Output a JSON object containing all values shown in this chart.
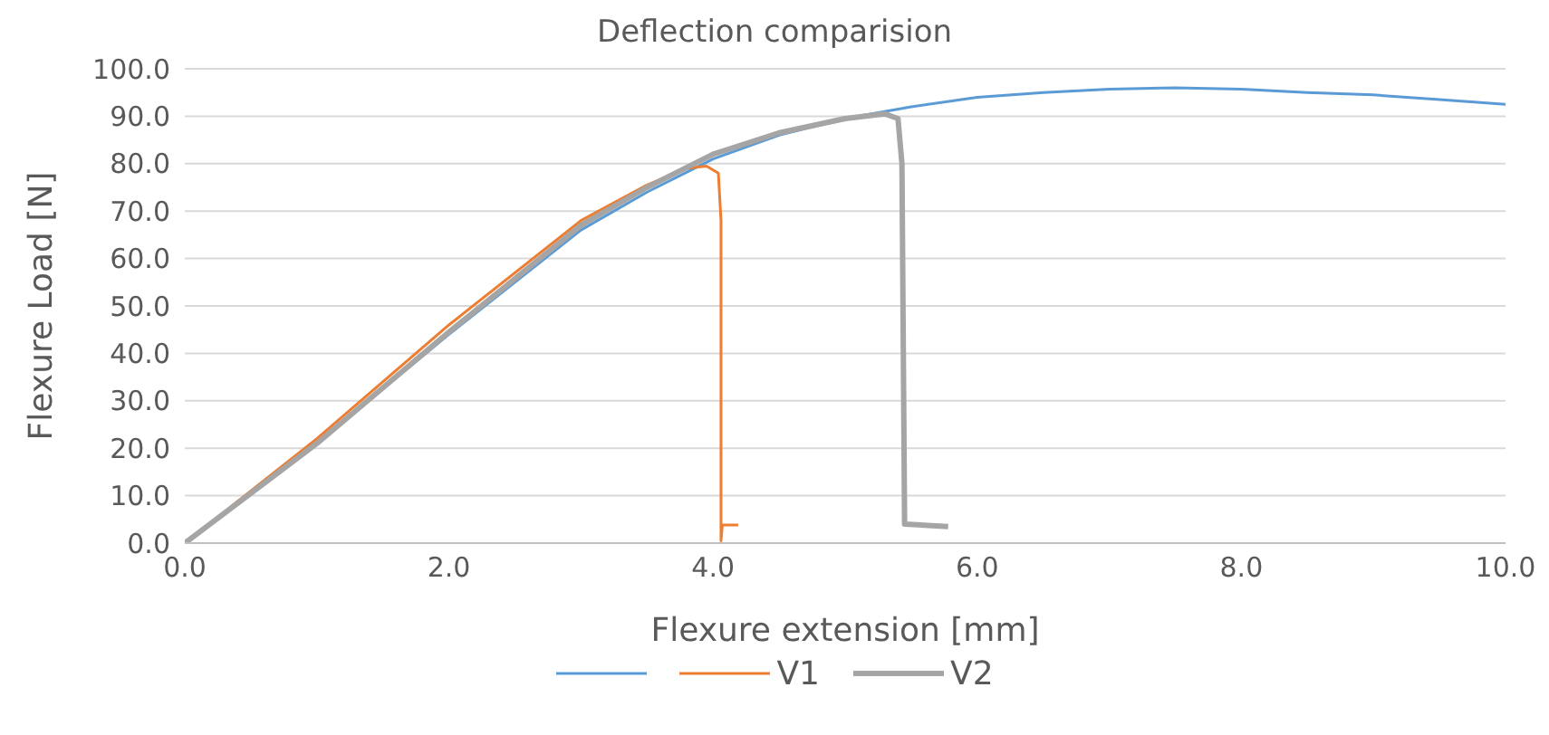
{
  "chart_data": {
    "type": "line",
    "title": "Deflection comparision",
    "xlabel": "Flexure extension [mm]",
    "ylabel": "Flexure Load [N]",
    "xlim": [
      0,
      10
    ],
    "xticks": [
      {
        "value": 0,
        "label": "0.0"
      },
      {
        "value": 2,
        "label": "2.0"
      },
      {
        "value": 4,
        "label": "4.0"
      },
      {
        "value": 6,
        "label": "6.0"
      },
      {
        "value": 8,
        "label": "8.0"
      },
      {
        "value": 10,
        "label": "10.0"
      }
    ],
    "ylim": [
      0,
      100
    ],
    "yticks": [
      {
        "value": 0,
        "label": "0.0"
      },
      {
        "value": 10,
        "label": "10.0"
      },
      {
        "value": 20,
        "label": "20.0"
      },
      {
        "value": 30,
        "label": "30.0"
      },
      {
        "value": 40,
        "label": "40.0"
      },
      {
        "value": 50,
        "label": "50.0"
      },
      {
        "value": 60,
        "label": "60.0"
      },
      {
        "value": 70,
        "label": "70.0"
      },
      {
        "value": 80,
        "label": "80.0"
      },
      {
        "value": 90,
        "label": "90.0"
      },
      {
        "value": 100,
        "label": "100.0"
      }
    ],
    "grid": "y",
    "legend": "bottom",
    "marker": "none",
    "line_style": "solid",
    "series": [
      {
        "color": "#5b9bd5",
        "x": [
          0,
          1,
          2,
          3,
          3.5,
          4,
          4.5,
          5,
          5.5,
          6,
          6.5,
          7,
          7.5,
          8,
          8.5,
          9,
          9.5,
          10
        ],
        "values": [
          0,
          21,
          44,
          66,
          74,
          81,
          86,
          89.5,
          92,
          94,
          95,
          95.7,
          96,
          95.7,
          95,
          94.5,
          93.5,
          92.5
        ]
      },
      {
        "name": "V1",
        "color": "#ed7d31",
        "x": [
          0,
          1,
          2,
          3,
          3.5,
          3.8,
          3.95,
          4.04,
          4.06,
          4.06,
          4.07,
          4.19
        ],
        "values": [
          0,
          22,
          46,
          68,
          75.5,
          79,
          79.5,
          78,
          68,
          0.5,
          3.8,
          3.8
        ]
      },
      {
        "name": "V2",
        "color": "#a5a5a5",
        "x": [
          0,
          1,
          2,
          3,
          3.5,
          4,
          4.5,
          5,
          5.3,
          5.4,
          5.43,
          5.45,
          5.78
        ],
        "values": [
          0,
          21,
          44.5,
          67,
          75,
          82,
          86.5,
          89.5,
          90.5,
          89.5,
          80,
          4,
          3.5
        ]
      }
    ]
  }
}
